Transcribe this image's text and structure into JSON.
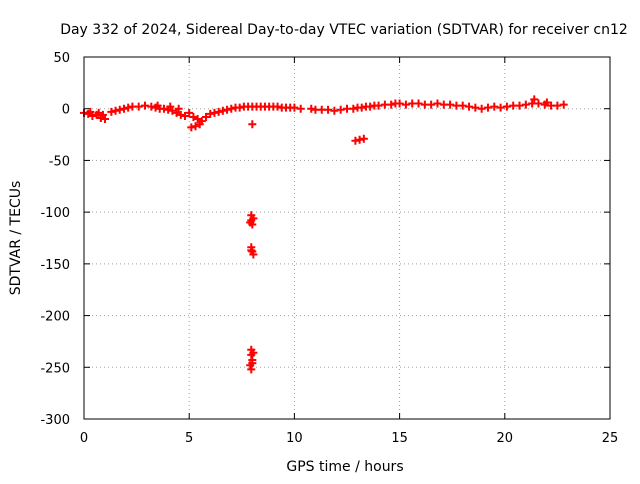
{
  "chart_data": {
    "type": "scatter",
    "title": "Day 332 of 2024, Sidereal Day-to-day VTEC variation (SDTVAR) for receiver cn12",
    "xlabel": "GPS time / hours",
    "ylabel": "SDTVAR / TECUs",
    "xlim": [
      0,
      25
    ],
    "ylim": [
      -300,
      50
    ],
    "xticks": [
      0,
      5,
      10,
      15,
      20,
      25
    ],
    "xtick_labels": [
      "0",
      "5",
      "10",
      "15",
      "20",
      "25"
    ],
    "yticks": [
      50,
      0,
      -50,
      -100,
      -150,
      -200,
      -250,
      -300
    ],
    "ytick_labels": [
      "50",
      "0",
      "-50",
      "-100",
      "-150",
      "-200",
      "-250",
      "-300"
    ],
    "grid": true,
    "marker": "plus",
    "series": [
      {
        "name": "SDTVAR",
        "color": "#ff0000",
        "points": [
          [
            0.0,
            -4
          ],
          [
            0.2,
            -5
          ],
          [
            0.4,
            -7
          ],
          [
            0.6,
            -6
          ],
          [
            0.8,
            -9
          ],
          [
            1.0,
            -10
          ],
          [
            0.3,
            -3
          ],
          [
            0.7,
            -4
          ],
          [
            0.9,
            -6
          ],
          [
            1.3,
            -3
          ],
          [
            1.5,
            -2
          ],
          [
            1.7,
            -1
          ],
          [
            1.9,
            0
          ],
          [
            2.1,
            1
          ],
          [
            2.3,
            2
          ],
          [
            2.6,
            2
          ],
          [
            2.9,
            3
          ],
          [
            3.2,
            2
          ],
          [
            3.4,
            1
          ],
          [
            3.6,
            0
          ],
          [
            3.8,
            0
          ],
          [
            4.0,
            -1
          ],
          [
            4.2,
            -2
          ],
          [
            4.4,
            -4
          ],
          [
            4.6,
            -6
          ],
          [
            4.8,
            -7
          ],
          [
            3.5,
            3
          ],
          [
            4.1,
            2
          ],
          [
            4.5,
            0
          ],
          [
            5.0,
            -4
          ],
          [
            5.2,
            -8
          ],
          [
            5.4,
            -10
          ],
          [
            5.5,
            -15
          ],
          [
            5.1,
            -18
          ],
          [
            5.3,
            -17
          ],
          [
            5.6,
            -12
          ],
          [
            5.8,
            -8
          ],
          [
            6.0,
            -5
          ],
          [
            6.2,
            -4
          ],
          [
            6.4,
            -3
          ],
          [
            6.6,
            -2
          ],
          [
            6.8,
            -1
          ],
          [
            7.0,
            0
          ],
          [
            7.2,
            1
          ],
          [
            7.4,
            1
          ],
          [
            7.6,
            2
          ],
          [
            7.8,
            2
          ],
          [
            8.0,
            2
          ],
          [
            8.2,
            2
          ],
          [
            8.0,
            -15
          ],
          [
            8.4,
            2
          ],
          [
            8.6,
            2
          ],
          [
            8.8,
            2
          ],
          [
            9.0,
            2
          ],
          [
            9.2,
            2
          ],
          [
            9.4,
            1
          ],
          [
            9.6,
            1
          ],
          [
            9.8,
            1
          ],
          [
            10.0,
            1
          ],
          [
            10.3,
            0
          ],
          [
            10.8,
            0
          ],
          [
            11.0,
            -1
          ],
          [
            11.3,
            -1
          ],
          [
            11.6,
            -1
          ],
          [
            11.9,
            -2
          ],
          [
            12.2,
            -1
          ],
          [
            12.5,
            0
          ],
          [
            12.8,
            0
          ],
          [
            13.0,
            1
          ],
          [
            13.2,
            1
          ],
          [
            13.4,
            2
          ],
          [
            13.6,
            2
          ],
          [
            13.8,
            3
          ],
          [
            14.0,
            3
          ],
          [
            14.3,
            4
          ],
          [
            14.6,
            4
          ],
          [
            14.8,
            5
          ],
          [
            15.0,
            5
          ],
          [
            15.3,
            4
          ],
          [
            15.6,
            5
          ],
          [
            15.9,
            5
          ],
          [
            16.2,
            4
          ],
          [
            16.5,
            4
          ],
          [
            16.8,
            5
          ],
          [
            17.1,
            4
          ],
          [
            17.4,
            4
          ],
          [
            17.7,
            3
          ],
          [
            18.0,
            3
          ],
          [
            18.3,
            2
          ],
          [
            18.6,
            1
          ],
          [
            18.9,
            0
          ],
          [
            19.2,
            1
          ],
          [
            19.5,
            2
          ],
          [
            19.8,
            1
          ],
          [
            20.1,
            2
          ],
          [
            20.4,
            3
          ],
          [
            20.7,
            3
          ],
          [
            21.0,
            4
          ],
          [
            21.3,
            5
          ],
          [
            21.6,
            5
          ],
          [
            21.9,
            4
          ],
          [
            22.2,
            3
          ],
          [
            22.5,
            3
          ],
          [
            22.8,
            4
          ],
          [
            21.4,
            9
          ],
          [
            22.0,
            6
          ],
          [
            12.9,
            -31
          ],
          [
            13.1,
            -30
          ],
          [
            13.3,
            -29
          ],
          [
            7.95,
            -103
          ],
          [
            7.95,
            -108
          ],
          [
            8.0,
            -112
          ],
          [
            8.05,
            -106
          ],
          [
            7.9,
            -110
          ],
          [
            7.95,
            -134
          ],
          [
            8.0,
            -138
          ],
          [
            8.05,
            -141
          ],
          [
            7.95,
            -137
          ],
          [
            7.95,
            -233
          ],
          [
            7.95,
            -238
          ],
          [
            8.0,
            -243
          ],
          [
            7.9,
            -248
          ],
          [
            7.95,
            -252
          ],
          [
            8.05,
            -236
          ],
          [
            8.0,
            -246
          ]
        ]
      }
    ]
  }
}
